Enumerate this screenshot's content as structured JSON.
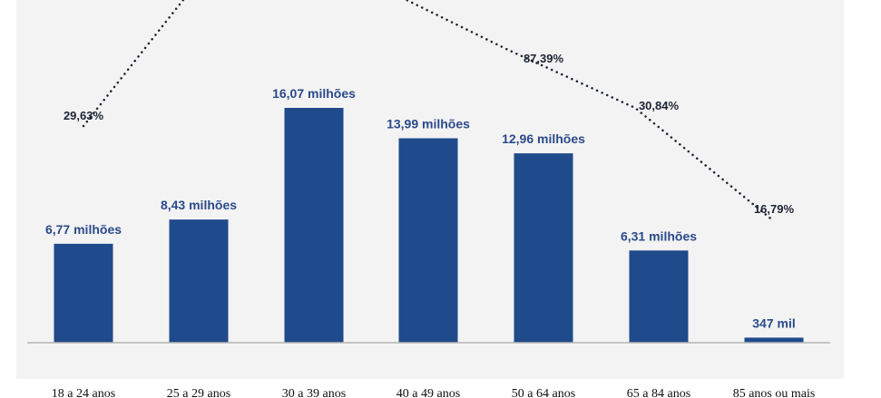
{
  "colors": {
    "panel": "#f3f3f3",
    "bar": "#1f4a8c",
    "bar_label": "#2b4a8a",
    "line": "#1c2333",
    "axis": "#b5b5b5"
  },
  "chart_data": [
    {
      "type": "bar",
      "categories": [
        "18 a 24 anos",
        "25 a 29 anos",
        "30 a 39 anos",
        "40 a 49 anos",
        "50 a 64 anos",
        "65 a 84 anos",
        "85 anos ou mais"
      ],
      "values": [
        6.77,
        8.43,
        16.07,
        13.99,
        12.96,
        6.31,
        0.347
      ],
      "value_labels": [
        "6,77 milhões",
        "8,43 milhões",
        "16,07 milhões",
        "13,99 milhões",
        "12,96 milhões",
        "6,31 milhões",
        "347 mil"
      ],
      "ylim": [
        0,
        16.07
      ]
    },
    {
      "type": "line",
      "style": "dotted",
      "categories": [
        "18 a 24 anos",
        "25 a 29 anos",
        "30 a 39 anos",
        "40 a 49 anos",
        "50 a 64 anos",
        "65 a 84 anos",
        "85 anos ou mais"
      ],
      "values": [
        29.63,
        null,
        null,
        null,
        87.39,
        30.84,
        16.79
      ],
      "value_labels": [
        "29,63%",
        "",
        "",
        "",
        "87,39%",
        "30,84%",
        "16,79%"
      ]
    }
  ]
}
